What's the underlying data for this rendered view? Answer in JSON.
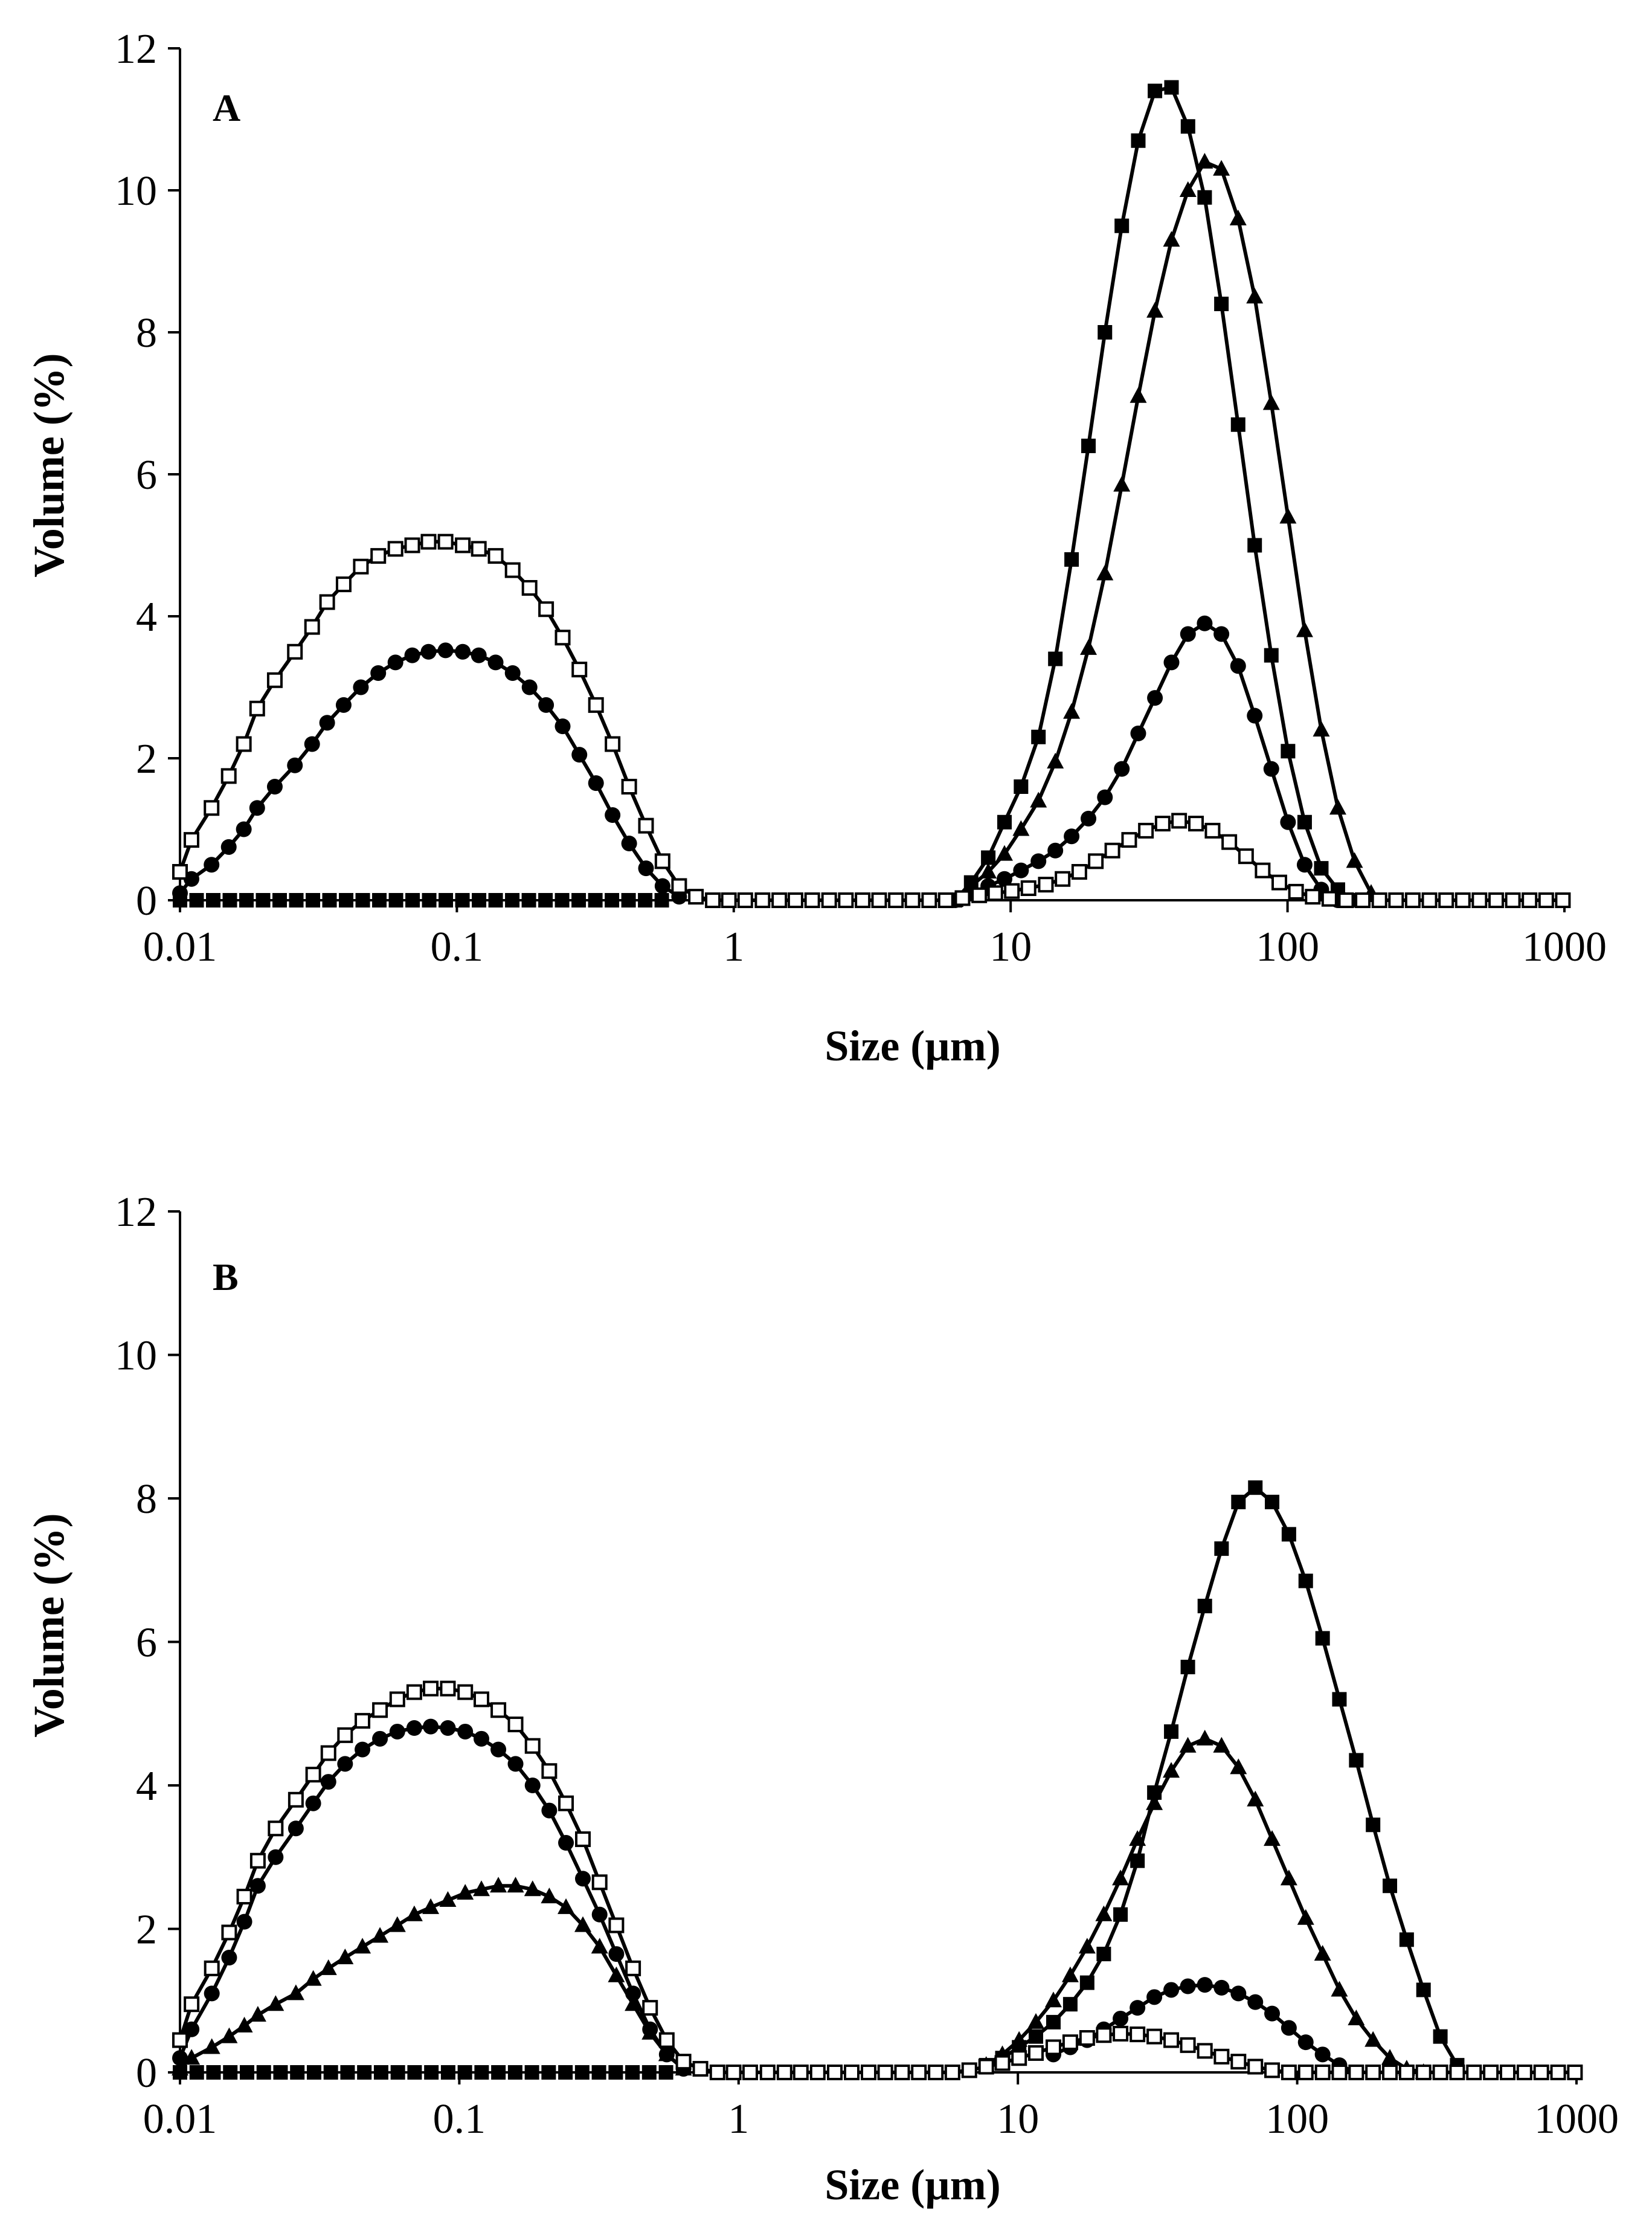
{
  "chart_data": [
    {
      "type": "line",
      "panel_label": "A",
      "xlabel": "Size (µm)",
      "ylabel": "Volume (%)",
      "xscale": "log",
      "xlim": [
        0.01,
        1000
      ],
      "ylim": [
        0,
        12
      ],
      "x_ticks": [
        0.01,
        0.1,
        1,
        10,
        100,
        1000
      ],
      "x_tick_labels": [
        "0.01",
        "0.1",
        "1",
        "10",
        "100",
        "1000"
      ],
      "y_ticks": [
        0,
        2,
        4,
        6,
        8,
        10,
        12
      ],
      "y_tick_labels": [
        "0",
        "2",
        "4",
        "6",
        "8",
        "10",
        "12"
      ],
      "grid": false,
      "legend": "none",
      "series": [
        {
          "name": "filled-square",
          "marker": "square-filled",
          "x": [
            6.3,
            7.2,
            8.3,
            9.5,
            10.9,
            12.6,
            14.5,
            16.6,
            19.1,
            21.9,
            25.2,
            28.9,
            33.2,
            38.1,
            43.7,
            50.2,
            57.7,
            66.3,
            76.1,
            87.4,
            100.4,
            115.3,
            132.4,
            152,
            174.6
          ],
          "y": [
            0.0,
            0.25,
            0.6,
            1.1,
            1.6,
            2.3,
            3.4,
            4.8,
            6.4,
            8.0,
            9.5,
            10.7,
            11.4,
            11.45,
            10.9,
            9.9,
            8.4,
            6.7,
            5.0,
            3.45,
            2.1,
            1.1,
            0.45,
            0.15,
            0.0
          ]
        },
        {
          "name": "filled-triangle",
          "marker": "triangle-filled",
          "x": [
            6.3,
            7.2,
            8.3,
            9.5,
            10.9,
            12.6,
            14.5,
            16.6,
            19.1,
            21.9,
            25.2,
            28.9,
            33.2,
            38.1,
            43.7,
            50.2,
            57.7,
            66.3,
            76.1,
            87.4,
            100.4,
            115.3,
            132.4,
            152,
            174.6,
            200.4
          ],
          "y": [
            0.0,
            0.2,
            0.4,
            0.65,
            1.0,
            1.4,
            1.95,
            2.65,
            3.55,
            4.6,
            5.85,
            7.1,
            8.3,
            9.3,
            10.0,
            10.4,
            10.3,
            9.6,
            8.5,
            7.0,
            5.4,
            3.8,
            2.4,
            1.3,
            0.55,
            0.1
          ]
        },
        {
          "name": "filled-circle",
          "marker": "circle-filled",
          "x": [
            0.01,
            0.011,
            0.013,
            0.015,
            0.017,
            0.019,
            0.022,
            0.026,
            0.03,
            0.034,
            0.039,
            0.045,
            0.052,
            0.06,
            0.069,
            0.079,
            0.091,
            0.105,
            0.12,
            0.138,
            0.159,
            0.183,
            0.21,
            0.241,
            0.277,
            0.318,
            0.365,
            0.419,
            0.482,
            0.553,
            0.635,
            6.3,
            7.2,
            8.3,
            9.5,
            10.9,
            12.6,
            14.5,
            16.6,
            19.1,
            21.9,
            25.2,
            28.9,
            33.2,
            38.1,
            43.7,
            50.2,
            57.7,
            66.3,
            76.1,
            87.4,
            100.4,
            115.3,
            132.4,
            152
          ],
          "y": [
            0.1,
            0.3,
            0.5,
            0.75,
            1.0,
            1.3,
            1.6,
            1.9,
            2.2,
            2.5,
            2.75,
            3.0,
            3.2,
            3.35,
            3.45,
            3.5,
            3.52,
            3.5,
            3.45,
            3.35,
            3.2,
            3.0,
            2.75,
            2.45,
            2.05,
            1.65,
            1.2,
            0.8,
            0.45,
            0.2,
            0.05,
            0.0,
            0.1,
            0.2,
            0.3,
            0.42,
            0.55,
            0.7,
            0.9,
            1.15,
            1.45,
            1.85,
            2.35,
            2.85,
            3.35,
            3.75,
            3.9,
            3.75,
            3.3,
            2.6,
            1.85,
            1.1,
            0.5,
            0.15,
            0.0
          ]
        },
        {
          "name": "open-square",
          "marker": "square-open",
          "x": [
            0.01,
            0.011,
            0.013,
            0.015,
            0.017,
            0.019,
            0.022,
            0.026,
            0.03,
            0.034,
            0.039,
            0.045,
            0.052,
            0.06,
            0.069,
            0.079,
            0.091,
            0.105,
            0.12,
            0.138,
            0.159,
            0.183,
            0.21,
            0.241,
            0.277,
            0.318,
            0.365,
            0.419,
            0.482,
            0.553,
            0.635,
            0.73,
            0.84,
            0.96,
            1.1,
            1.27,
            1.46,
            1.67,
            1.92,
            2.21,
            2.54,
            2.92,
            3.35,
            3.85,
            4.42,
            5.08,
            5.83,
            6.7,
            7.7,
            8.8,
            10.1,
            11.6,
            13.4,
            15.4,
            17.7,
            20.3,
            23.3,
            26.8,
            30.8,
            35.4,
            40.6,
            46.7,
            53.6,
            61.6,
            70.8,
            81.3,
            93.4,
            107.3,
            123.3,
            141.6,
            162.7,
            186.9,
            214.7,
            246.6,
            283.3,
            325.5,
            373.9,
            429.5,
            493.4,
            566.8,
            651.1,
            748,
            859.3,
            987.1
          ],
          "y": [
            0.4,
            0.85,
            1.3,
            1.75,
            2.2,
            2.7,
            3.1,
            3.5,
            3.85,
            4.2,
            4.45,
            4.7,
            4.85,
            4.95,
            5.0,
            5.05,
            5.05,
            5.0,
            4.95,
            4.85,
            4.65,
            4.4,
            4.1,
            3.7,
            3.25,
            2.75,
            2.2,
            1.6,
            1.05,
            0.55,
            0.2,
            0.05,
            0,
            0,
            0,
            0,
            0,
            0,
            0,
            0,
            0,
            0,
            0,
            0,
            0,
            0,
            0,
            0.03,
            0.07,
            0.1,
            0.13,
            0.17,
            0.22,
            0.3,
            0.4,
            0.55,
            0.7,
            0.85,
            0.98,
            1.08,
            1.12,
            1.08,
            0.98,
            0.82,
            0.62,
            0.42,
            0.25,
            0.12,
            0.05,
            0.02,
            0,
            0,
            0,
            0,
            0,
            0,
            0,
            0,
            0,
            0,
            0,
            0,
            0,
            0
          ]
        }
      ]
    },
    {
      "type": "line",
      "panel_label": "B",
      "xlabel": "Size (µm)",
      "ylabel": "Volume (%)",
      "xscale": "log",
      "xlim": [
        0.01,
        1000
      ],
      "ylim": [
        0,
        12
      ],
      "x_ticks": [
        0.01,
        0.1,
        1,
        10,
        100,
        1000
      ],
      "x_tick_labels": [
        "0.01",
        "0.1",
        "1",
        "10",
        "100",
        "1000"
      ],
      "y_ticks": [
        0,
        2,
        4,
        6,
        8,
        10,
        12
      ],
      "y_tick_labels": [
        "0",
        "2",
        "4",
        "6",
        "8",
        "10",
        "12"
      ],
      "grid": false,
      "legend": "none",
      "series": [
        {
          "name": "filled-square",
          "marker": "square-filled",
          "x": [
            7.7,
            8.8,
            10.1,
            11.6,
            13.4,
            15.4,
            17.7,
            20.3,
            23.3,
            26.8,
            30.8,
            35.4,
            40.6,
            46.7,
            53.6,
            61.6,
            70.8,
            81.3,
            93.4,
            107.3,
            123.3,
            141.6,
            162.7,
            186.9,
            214.7,
            246.6,
            283.3,
            325.5,
            373.9
          ],
          "y": [
            0.1,
            0.2,
            0.35,
            0.5,
            0.7,
            0.95,
            1.25,
            1.65,
            2.2,
            2.95,
            3.9,
            4.75,
            5.65,
            6.5,
            7.3,
            7.95,
            8.15,
            7.95,
            7.5,
            6.85,
            6.05,
            5.2,
            4.35,
            3.45,
            2.6,
            1.85,
            1.15,
            0.5,
            0.1
          ]
        },
        {
          "name": "filled-triangle",
          "marker": "triangle-filled",
          "x": [
            0.01,
            0.011,
            0.013,
            0.015,
            0.017,
            0.019,
            0.022,
            0.026,
            0.03,
            0.034,
            0.039,
            0.045,
            0.052,
            0.06,
            0.069,
            0.079,
            0.091,
            0.105,
            0.12,
            0.138,
            0.159,
            0.183,
            0.21,
            0.241,
            0.277,
            0.318,
            0.365,
            0.419,
            0.482,
            0.553,
            0.635,
            7.7,
            8.8,
            10.1,
            11.6,
            13.4,
            15.4,
            17.7,
            20.3,
            23.3,
            26.8,
            30.8,
            35.4,
            40.6,
            46.7,
            53.6,
            61.6,
            70.8,
            81.3,
            93.4,
            107.3,
            123.3,
            141.6,
            162.7,
            186.9,
            214.7,
            246.6,
            283.3
          ],
          "y": [
            0.05,
            0.2,
            0.35,
            0.5,
            0.65,
            0.8,
            0.95,
            1.1,
            1.3,
            1.45,
            1.6,
            1.75,
            1.9,
            2.05,
            2.2,
            2.3,
            2.4,
            2.5,
            2.55,
            2.6,
            2.6,
            2.55,
            2.45,
            2.3,
            2.05,
            1.75,
            1.35,
            0.95,
            0.55,
            0.25,
            0.05,
            0.1,
            0.25,
            0.45,
            0.7,
            1.0,
            1.35,
            1.75,
            2.2,
            2.7,
            3.25,
            3.75,
            4.2,
            4.55,
            4.65,
            4.55,
            4.25,
            3.8,
            3.25,
            2.7,
            2.15,
            1.65,
            1.15,
            0.75,
            0.45,
            0.2,
            0.05,
            0.0
          ]
        },
        {
          "name": "filled-circle",
          "marker": "circle-filled",
          "x": [
            0.01,
            0.011,
            0.013,
            0.015,
            0.017,
            0.019,
            0.022,
            0.026,
            0.03,
            0.034,
            0.039,
            0.045,
            0.052,
            0.06,
            0.069,
            0.079,
            0.091,
            0.105,
            0.12,
            0.138,
            0.159,
            0.183,
            0.21,
            0.241,
            0.277,
            0.318,
            0.365,
            0.419,
            0.482,
            0.553,
            0.635,
            13.4,
            15.4,
            17.7,
            20.3,
            23.3,
            26.8,
            30.8,
            35.4,
            40.6,
            46.7,
            53.6,
            61.6,
            70.8,
            81.3,
            93.4,
            107.3,
            123.3,
            141.6,
            162.7
          ],
          "y": [
            0.2,
            0.6,
            1.1,
            1.6,
            2.1,
            2.6,
            3.0,
            3.4,
            3.75,
            4.05,
            4.3,
            4.5,
            4.65,
            4.75,
            4.8,
            4.82,
            4.8,
            4.75,
            4.65,
            4.5,
            4.3,
            4.0,
            3.65,
            3.2,
            2.7,
            2.2,
            1.65,
            1.1,
            0.6,
            0.25,
            0.05,
            0.25,
            0.35,
            0.45,
            0.6,
            0.75,
            0.9,
            1.05,
            1.15,
            1.2,
            1.22,
            1.18,
            1.1,
            0.98,
            0.82,
            0.62,
            0.42,
            0.25,
            0.1,
            0.0
          ]
        },
        {
          "name": "open-square",
          "marker": "square-open",
          "x": [
            0.01,
            0.011,
            0.013,
            0.015,
            0.017,
            0.019,
            0.022,
            0.026,
            0.03,
            0.034,
            0.039,
            0.045,
            0.052,
            0.06,
            0.069,
            0.079,
            0.091,
            0.105,
            0.12,
            0.138,
            0.159,
            0.183,
            0.21,
            0.241,
            0.277,
            0.318,
            0.365,
            0.419,
            0.482,
            0.553,
            0.635,
            0.73,
            0.84,
            0.96,
            1.1,
            1.27,
            1.46,
            1.67,
            1.92,
            2.21,
            2.54,
            2.92,
            3.35,
            3.85,
            4.42,
            5.08,
            5.83,
            6.7,
            7.7,
            8.8,
            10.1,
            11.6,
            13.4,
            15.4,
            17.7,
            20.3,
            23.3,
            26.8,
            30.8,
            35.4,
            40.6,
            46.7,
            53.6,
            61.6,
            70.8,
            81.3,
            93.4,
            107.3,
            123.3,
            141.6,
            162.7,
            186.9,
            214.7,
            246.6,
            283.3,
            325.5,
            373.9,
            429.5,
            493.4,
            566.8,
            651.1,
            748,
            859.3,
            987.1
          ],
          "y": [
            0.45,
            0.95,
            1.45,
            1.95,
            2.45,
            2.95,
            3.4,
            3.8,
            4.15,
            4.45,
            4.7,
            4.9,
            5.05,
            5.2,
            5.3,
            5.35,
            5.35,
            5.3,
            5.2,
            5.05,
            4.85,
            4.55,
            4.2,
            3.75,
            3.25,
            2.65,
            2.05,
            1.45,
            0.9,
            0.45,
            0.15,
            0.05,
            0,
            0,
            0,
            0,
            0,
            0,
            0,
            0,
            0,
            0,
            0,
            0,
            0,
            0,
            0,
            0.03,
            0.08,
            0.13,
            0.2,
            0.27,
            0.35,
            0.42,
            0.48,
            0.52,
            0.54,
            0.53,
            0.5,
            0.45,
            0.38,
            0.3,
            0.22,
            0.15,
            0.08,
            0.03,
            0,
            0,
            0,
            0,
            0,
            0,
            0,
            0,
            0,
            0,
            0,
            0,
            0,
            0,
            0,
            0,
            0,
            0
          ]
        }
      ]
    }
  ]
}
